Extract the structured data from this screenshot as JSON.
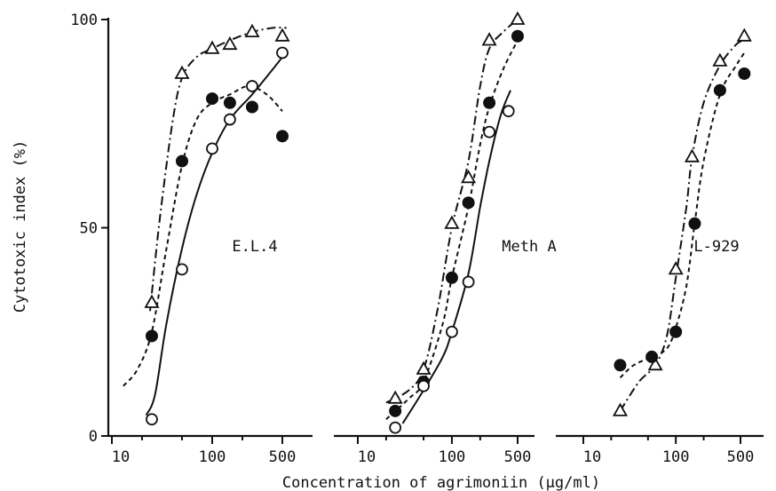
{
  "chart_data": {
    "type": "line",
    "xlabel": "Concentration of agrimoniin (μg/ml)",
    "ylabel": "Cytotoxic index (%)",
    "x_scale": "log",
    "ylim": [
      0,
      100
    ],
    "yticks": [
      0,
      50,
      100
    ],
    "xticks": [
      10,
      100,
      500
    ],
    "legend": "none",
    "panels": [
      {
        "label": "E.L.4",
        "xlim": [
          10,
          600
        ],
        "series": [
          {
            "marker": "triangle-open",
            "line": "dash-dot",
            "points": [
              [
                25,
                32
              ],
              [
                50,
                87
              ],
              [
                100,
                93
              ],
              [
                150,
                94
              ],
              [
                250,
                97
              ],
              [
                500,
                96
              ]
            ],
            "curve": [
              [
                24,
                30
              ],
              [
                30,
                52
              ],
              [
                40,
                75
              ],
              [
                50,
                86
              ],
              [
                70,
                91
              ],
              [
                100,
                93
              ],
              [
                150,
                95
              ],
              [
                250,
                97
              ],
              [
                400,
                98
              ],
              [
                550,
                98
              ]
            ]
          },
          {
            "marker": "circle-filled",
            "line": "dotted",
            "points": [
              [
                25,
                24
              ],
              [
                50,
                66
              ],
              [
                100,
                81
              ],
              [
                150,
                80
              ],
              [
                250,
                79
              ],
              [
                500,
                72
              ]
            ],
            "curve": [
              [
                13,
                12
              ],
              [
                18,
                16
              ],
              [
                25,
                25
              ],
              [
                35,
                45
              ],
              [
                50,
                65
              ],
              [
                70,
                76
              ],
              [
                100,
                80
              ],
              [
                150,
                82
              ],
              [
                230,
                84
              ],
              [
                350,
                82
              ],
              [
                500,
                78
              ]
            ]
          },
          {
            "marker": "circle-open",
            "line": "solid",
            "points": [
              [
                25,
                4
              ],
              [
                50,
                40
              ],
              [
                100,
                69
              ],
              [
                150,
                76
              ],
              [
                250,
                84
              ],
              [
                500,
                92
              ]
            ],
            "curve": [
              [
                22,
                5
              ],
              [
                27,
                10
              ],
              [
                35,
                27
              ],
              [
                50,
                45
              ],
              [
                70,
                58
              ],
              [
                100,
                68
              ],
              [
                150,
                76
              ],
              [
                250,
                82
              ],
              [
                400,
                88
              ],
              [
                500,
                91
              ]
            ]
          }
        ]
      },
      {
        "label": "Meth A",
        "xlim": [
          10,
          600
        ],
        "series": [
          {
            "marker": "triangle-open",
            "line": "dash-dot",
            "points": [
              [
                25,
                9
              ],
              [
                50,
                16
              ],
              [
                100,
                51
              ],
              [
                150,
                62
              ],
              [
                250,
                95
              ],
              [
                500,
                100
              ]
            ],
            "curve": [
              [
                20,
                8
              ],
              [
                35,
                11
              ],
              [
                50,
                16
              ],
              [
                70,
                30
              ],
              [
                100,
                50
              ],
              [
                150,
                66
              ],
              [
                200,
                84
              ],
              [
                250,
                93
              ],
              [
                350,
                97
              ],
              [
                500,
                100
              ]
            ]
          },
          {
            "marker": "circle-filled",
            "line": "dotted",
            "points": [
              [
                25,
                6
              ],
              [
                50,
                13
              ],
              [
                100,
                38
              ],
              [
                150,
                56
              ],
              [
                250,
                80
              ],
              [
                500,
                96
              ]
            ],
            "curve": [
              [
                20,
                4
              ],
              [
                35,
                9
              ],
              [
                50,
                13
              ],
              [
                80,
                27
              ],
              [
                100,
                38
              ],
              [
                150,
                55
              ],
              [
                200,
                70
              ],
              [
                250,
                79
              ],
              [
                350,
                88
              ],
              [
                500,
                95
              ]
            ]
          },
          {
            "marker": "circle-open",
            "line": "solid",
            "points": [
              [
                25,
                2
              ],
              [
                50,
                12
              ],
              [
                100,
                25
              ],
              [
                150,
                37
              ],
              [
                250,
                73
              ],
              [
                400,
                78
              ]
            ],
            "curve": [
              [
                30,
                3
              ],
              [
                50,
                11
              ],
              [
                80,
                19
              ],
              [
                100,
                25
              ],
              [
                150,
                39
              ],
              [
                200,
                55
              ],
              [
                250,
                66
              ],
              [
                330,
                77
              ],
              [
                420,
                83
              ]
            ]
          }
        ]
      },
      {
        "label": "L-929",
        "xlim": [
          10,
          600
        ],
        "series": [
          {
            "marker": "triangle-open",
            "line": "dash-dot",
            "points": [
              [
                25,
                6
              ],
              [
                60,
                17
              ],
              [
                100,
                40
              ],
              [
                150,
                67
              ],
              [
                300,
                90
              ],
              [
                550,
                96
              ]
            ],
            "curve": [
              [
                25,
                6
              ],
              [
                40,
                13
              ],
              [
                60,
                17
              ],
              [
                80,
                24
              ],
              [
                100,
                38
              ],
              [
                130,
                55
              ],
              [
                150,
                67
              ],
              [
                200,
                80
              ],
              [
                300,
                89
              ],
              [
                450,
                94
              ],
              [
                550,
                95
              ]
            ]
          },
          {
            "marker": "circle-filled",
            "line": "dotted",
            "points": [
              [
                25,
                17
              ],
              [
                55,
                19
              ],
              [
                100,
                25
              ],
              [
                160,
                51
              ],
              [
                300,
                83
              ],
              [
                550,
                87
              ]
            ],
            "curve": [
              [
                25,
                14
              ],
              [
                35,
                17
              ],
              [
                55,
                19
              ],
              [
                80,
                21
              ],
              [
                100,
                26
              ],
              [
                130,
                36
              ],
              [
                160,
                51
              ],
              [
                200,
                66
              ],
              [
                300,
                82
              ],
              [
                450,
                89
              ],
              [
                550,
                92
              ]
            ]
          }
        ]
      }
    ]
  }
}
